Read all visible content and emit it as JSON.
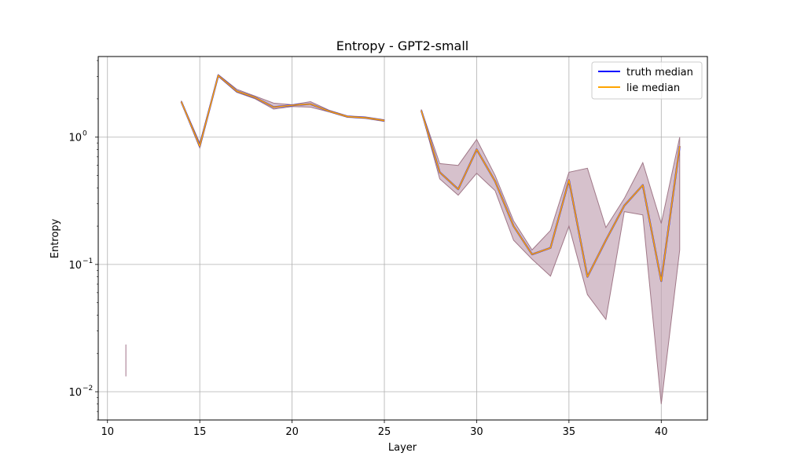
{
  "chart_data": {
    "type": "line",
    "title": "Entropy - GPT2-small",
    "xlabel": "Layer",
    "ylabel": "Entropy",
    "xlim": [
      9.5,
      42.5
    ],
    "ylim": [
      0.006,
      4.3
    ],
    "yscale": "log",
    "grid": true,
    "legend_position": "top-right",
    "x_ticks": [
      10,
      15,
      20,
      25,
      30,
      35,
      40
    ],
    "x_tick_labels": [
      "10",
      "15",
      "20",
      "25",
      "30",
      "35",
      "40"
    ],
    "y_ticks": [
      0.01,
      0.1,
      1
    ],
    "y_tick_labels": [
      "10",
      "10",
      "10"
    ],
    "y_tick_exponents": [
      "−2",
      "−1",
      "0"
    ],
    "series": [
      {
        "name": "truth median",
        "color": "#0000ff",
        "segments": [
          {
            "x": [
              14,
              15,
              16,
              17,
              18,
              19,
              20,
              21,
              22,
              23,
              24,
              25
            ],
            "y": [
              1.9,
              0.85,
              3.05,
              2.3,
              2.05,
              1.72,
              1.78,
              1.82,
              1.6,
              1.45,
              1.42,
              1.35
            ]
          },
          {
            "x": [
              27,
              28,
              29,
              30,
              31,
              32,
              33,
              34,
              35,
              36,
              37,
              38,
              39,
              40,
              41
            ],
            "y": [
              1.62,
              0.53,
              0.39,
              0.8,
              0.45,
              0.2,
              0.12,
              0.135,
              0.46,
              0.08,
              0.155,
              0.29,
              0.42,
              0.074,
              0.85
            ]
          }
        ]
      },
      {
        "name": "lie median",
        "color": "#ffa500",
        "segments": [
          {
            "x": [
              14,
              15,
              16,
              17,
              18,
              19,
              20,
              21,
              22,
              23,
              24,
              25
            ],
            "y": [
              1.9,
              0.85,
              3.05,
              2.3,
              2.05,
              1.72,
              1.78,
              1.82,
              1.6,
              1.45,
              1.42,
              1.35
            ]
          },
          {
            "x": [
              27,
              28,
              29,
              30,
              31,
              32,
              33,
              34,
              35,
              36,
              37,
              38,
              39,
              40,
              41
            ],
            "y": [
              1.62,
              0.53,
              0.39,
              0.8,
              0.45,
              0.2,
              0.12,
              0.135,
              0.46,
              0.08,
              0.155,
              0.29,
              0.42,
              0.074,
              0.85
            ]
          }
        ]
      }
    ],
    "band": {
      "color": "#c0a0b0",
      "segments": [
        {
          "x": [
            14,
            15,
            16,
            17,
            18,
            19,
            20,
            21,
            22,
            23,
            24,
            25
          ],
          "low": [
            1.88,
            0.82,
            3.0,
            2.25,
            2.0,
            1.66,
            1.74,
            1.72,
            1.58,
            1.43,
            1.4,
            1.33
          ],
          "high": [
            1.93,
            0.9,
            3.1,
            2.38,
            2.1,
            1.85,
            1.8,
            1.9,
            1.63,
            1.47,
            1.44,
            1.37
          ]
        },
        {
          "x": [
            27,
            28,
            29,
            30,
            31,
            32,
            33,
            34,
            35,
            36,
            37,
            38,
            39,
            40,
            41
          ],
          "low": [
            1.6,
            0.47,
            0.35,
            0.52,
            0.38,
            0.155,
            0.11,
            0.081,
            0.2,
            0.058,
            0.037,
            0.26,
            0.245,
            0.008,
            0.13
          ],
          "high": [
            1.65,
            0.62,
            0.6,
            0.96,
            0.5,
            0.22,
            0.13,
            0.185,
            0.53,
            0.57,
            0.195,
            0.33,
            0.63,
            0.21,
            1.0
          ]
        }
      ],
      "isolated": [
        {
          "x": 11,
          "low": 0.0132,
          "high": 0.0235
        }
      ]
    }
  }
}
